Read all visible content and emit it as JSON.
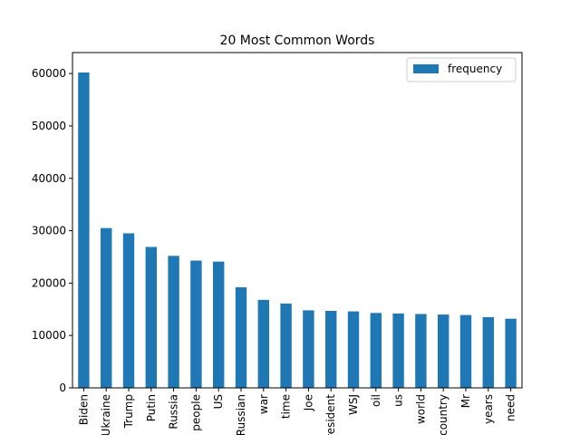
{
  "chart_data": {
    "type": "bar",
    "title": "20 Most Common Words",
    "xlabel": "",
    "ylabel": "",
    "ylim": [
      0,
      64000
    ],
    "yticks": [
      0,
      10000,
      20000,
      30000,
      40000,
      50000,
      60000
    ],
    "categories": [
      "Biden",
      "Ukraine",
      "Trump",
      "Putin",
      "Russia",
      "people",
      "US",
      "Russian",
      "war",
      "time",
      "Joe",
      "President",
      "WSJ",
      "oil",
      "us",
      "world",
      "country",
      "Mr",
      "years",
      "need"
    ],
    "series": [
      {
        "name": "frequency",
        "color": "#1f77b4",
        "values": [
          60200,
          30500,
          29500,
          26900,
          25200,
          24300,
          24100,
          19200,
          16800,
          16100,
          14800,
          14700,
          14600,
          14300,
          14200,
          14100,
          14000,
          13900,
          13500,
          13200
        ]
      }
    ],
    "legend_position": "top-right",
    "grid": false
  }
}
